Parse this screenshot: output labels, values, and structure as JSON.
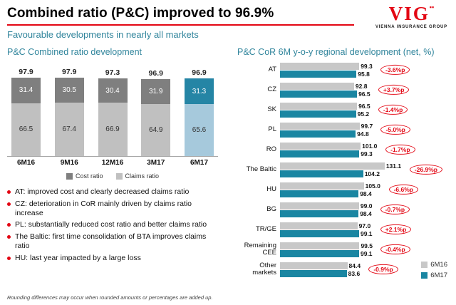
{
  "header": {
    "title": "Combined ratio (P&C) improved to 96.9%",
    "subtitle": "Favourable developments in nearly all markets",
    "logo": {
      "brand": "VIG",
      "marks": "▪▪",
      "tagline": "VIENNA INSURANCE GROUP"
    }
  },
  "left": {
    "chart_title": "P&C Combined ratio development",
    "legend": [
      "Cost ratio",
      "Claims ratio"
    ],
    "bullets": [
      "AT: improved cost and clearly decreased claims ratio",
      "CZ: deterioration in CoR mainly driven by claims ratio increase",
      "PL: substantially reduced cost ratio and better claims ratio",
      "The Baltic: first time consolidation of BTA improves claims ratio",
      "HU: last year impacted by a large loss"
    ]
  },
  "right": {
    "chart_title": "P&C CoR 6M y-o-y regional development (net, %)",
    "legend": [
      "6M16",
      "6M17"
    ]
  },
  "footnote": "Rounding differences may occur when rounded amounts or percentages are added up.",
  "colors": {
    "accent_red": "#e30613",
    "teal_text": "#31859c",
    "cost_gray": "#7f7f7f",
    "claims_gray": "#c0c0c0",
    "cost_teal": "#2585a5",
    "claims_lightblue": "#a6c9dc",
    "bar_6m16": "#c8c8c8",
    "bar_6m17": "#1a86a2"
  },
  "chart_data": [
    {
      "type": "bar",
      "subtype": "stacked-vertical",
      "title": "P&C Combined ratio development",
      "categories": [
        "6M16",
        "9M16",
        "12M16",
        "3M17",
        "6M17"
      ],
      "series": [
        {
          "name": "Cost ratio",
          "values": [
            31.4,
            30.5,
            30.4,
            31.9,
            31.3
          ]
        },
        {
          "name": "Claims ratio",
          "values": [
            66.5,
            67.4,
            66.9,
            64.9,
            65.6
          ]
        }
      ],
      "totals": [
        97.9,
        97.9,
        97.3,
        96.9,
        96.9
      ],
      "highlight_index": 4,
      "ylim": [
        0,
        100
      ],
      "legend_position": "bottom"
    },
    {
      "type": "bar",
      "subtype": "grouped-horizontal",
      "title": "P&C CoR 6M y-o-y regional development (net, %)",
      "categories": [
        "AT",
        "CZ",
        "SK",
        "PL",
        "RO",
        "The Baltic",
        "HU",
        "BG",
        "TR/GE",
        "Remaining CEE",
        "Other markets"
      ],
      "series": [
        {
          "name": "6M16",
          "values": [
            99.3,
            92.8,
            96.5,
            99.7,
            101.0,
            131.1,
            105.0,
            99.0,
            97.0,
            99.5,
            84.4
          ]
        },
        {
          "name": "6M17",
          "values": [
            95.8,
            96.5,
            95.2,
            94.8,
            99.3,
            104.2,
            98.4,
            98.4,
            99.1,
            99.1,
            83.6
          ]
        }
      ],
      "changes": [
        "-3.6%p",
        "+3.7%p",
        "-1.4%p",
        "-5.0%p",
        "-1.7%p",
        "-26.9%p",
        "-6.6%p",
        "-0.7%p",
        "+2.1%p",
        "-0.4%p",
        "-0.9%p"
      ],
      "xlim": [
        0,
        131.1
      ],
      "legend_position": "bottom-right"
    }
  ]
}
